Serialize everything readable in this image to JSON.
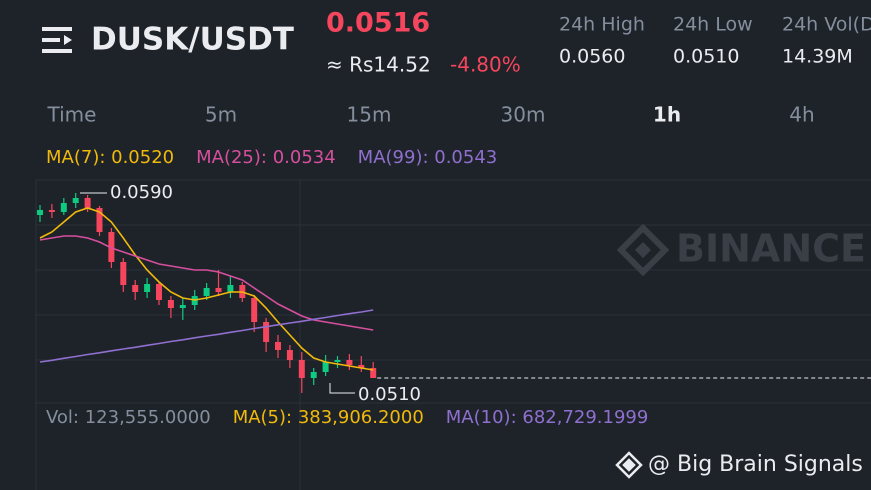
{
  "header": {
    "pair": "DUSK/USDT",
    "price": "0.0516",
    "fiat": "≈ Rs14.52",
    "change": "-4.80%",
    "stats": [
      {
        "label": "24h High",
        "value": "0.0560"
      },
      {
        "label": "24h Low",
        "value": "0.0510"
      },
      {
        "label": "24h Vol(D",
        "value": "14.39M"
      }
    ]
  },
  "tabs": {
    "items": [
      "Time",
      "5m",
      "15m",
      "30m",
      "1h",
      "4h"
    ],
    "active": 4
  },
  "indicators": [
    {
      "text": "MA(7): 0.0520",
      "color": "#f0b90b"
    },
    {
      "text": "MA(25): 0.0534",
      "color": "#d64f9e"
    },
    {
      "text": "MA(99): 0.0543",
      "color": "#8f6fcf"
    }
  ],
  "volume_legend": [
    {
      "text": "Vol: 123,555.0000",
      "color": "#848e9c"
    },
    {
      "text": "MA(5): 383,906.2000",
      "color": "#f0b90b"
    },
    {
      "text": "MA(10): 682,729.1999",
      "color": "#8f6fcf"
    }
  ],
  "watermark": "BINANCE",
  "credit": "@ Big Brain Signals",
  "chart_data": {
    "type": "candlestick",
    "ylim": [
      0.0505,
      0.0595
    ],
    "up_color": "#0ecb81",
    "down_color": "#f6465d",
    "candles": [
      {
        "o": 0.05812,
        "h": 0.05852,
        "l": 0.05784,
        "c": 0.05832
      },
      {
        "o": 0.05832,
        "h": 0.05856,
        "l": 0.058,
        "c": 0.05824
      },
      {
        "o": 0.05824,
        "h": 0.0588,
        "l": 0.05812,
        "c": 0.0586
      },
      {
        "o": 0.0586,
        "h": 0.059,
        "l": 0.0584,
        "c": 0.0588
      },
      {
        "o": 0.0588,
        "h": 0.05892,
        "l": 0.05824,
        "c": 0.0584
      },
      {
        "o": 0.0584,
        "h": 0.05848,
        "l": 0.05728,
        "c": 0.05744
      },
      {
        "o": 0.05744,
        "h": 0.0576,
        "l": 0.056,
        "c": 0.05624
      },
      {
        "o": 0.05624,
        "h": 0.0564,
        "l": 0.05504,
        "c": 0.05532
      },
      {
        "o": 0.05532,
        "h": 0.05552,
        "l": 0.05472,
        "c": 0.05504
      },
      {
        "o": 0.05504,
        "h": 0.0556,
        "l": 0.0548,
        "c": 0.05536
      },
      {
        "o": 0.05536,
        "h": 0.05544,
        "l": 0.05452,
        "c": 0.05472
      },
      {
        "o": 0.05472,
        "h": 0.05488,
        "l": 0.054,
        "c": 0.0544
      },
      {
        "o": 0.0544,
        "h": 0.0548,
        "l": 0.05392,
        "c": 0.05452
      },
      {
        "o": 0.05452,
        "h": 0.05512,
        "l": 0.05432,
        "c": 0.05488
      },
      {
        "o": 0.05488,
        "h": 0.0554,
        "l": 0.05472,
        "c": 0.0552
      },
      {
        "o": 0.0552,
        "h": 0.05592,
        "l": 0.05488,
        "c": 0.05504
      },
      {
        "o": 0.05504,
        "h": 0.05568,
        "l": 0.0548,
        "c": 0.05532
      },
      {
        "o": 0.05532,
        "h": 0.05544,
        "l": 0.05464,
        "c": 0.0548
      },
      {
        "o": 0.0548,
        "h": 0.05492,
        "l": 0.05344,
        "c": 0.05384
      },
      {
        "o": 0.05384,
        "h": 0.054,
        "l": 0.05264,
        "c": 0.05304
      },
      {
        "o": 0.05304,
        "h": 0.05332,
        "l": 0.0524,
        "c": 0.05272
      },
      {
        "o": 0.05272,
        "h": 0.05292,
        "l": 0.052,
        "c": 0.05232
      },
      {
        "o": 0.05232,
        "h": 0.05264,
        "l": 0.051,
        "c": 0.0516
      },
      {
        "o": 0.0516,
        "h": 0.052,
        "l": 0.05132,
        "c": 0.05184
      },
      {
        "o": 0.05184,
        "h": 0.05252,
        "l": 0.05168,
        "c": 0.05224
      },
      {
        "o": 0.05224,
        "h": 0.05248,
        "l": 0.052,
        "c": 0.05232
      },
      {
        "o": 0.05232,
        "h": 0.05256,
        "l": 0.05192,
        "c": 0.05212
      },
      {
        "o": 0.05212,
        "h": 0.05248,
        "l": 0.05184,
        "c": 0.052
      },
      {
        "o": 0.052,
        "h": 0.05224,
        "l": 0.0516,
        "c": 0.0516
      }
    ],
    "series": [
      {
        "name": "MA(7)",
        "color": "#f0b90b",
        "values": [
          0.0572,
          0.05744,
          0.05784,
          0.05824,
          0.0584,
          0.05824,
          0.05784,
          0.0572,
          0.05652,
          0.05592,
          0.05544,
          0.05504,
          0.0548,
          0.05472,
          0.0548,
          0.05492,
          0.05504,
          0.05504,
          0.05488,
          0.0544,
          0.05384,
          0.05332,
          0.0528,
          0.0524,
          0.05224,
          0.05216,
          0.05208,
          0.052,
          0.05192
        ]
      },
      {
        "name": "MA(25)",
        "color": "#d64f9e",
        "values": [
          0.05712,
          0.0572,
          0.05728,
          0.05728,
          0.0572,
          0.05704,
          0.0568,
          0.05664,
          0.05648,
          0.05632,
          0.05616,
          0.05608,
          0.056,
          0.05592,
          0.05592,
          0.05584,
          0.05568,
          0.05552,
          0.0552,
          0.05488,
          0.05456,
          0.05432,
          0.05408,
          0.05392,
          0.05384,
          0.05376,
          0.05368,
          0.0536,
          0.05352
        ]
      },
      {
        "name": "MA(99)",
        "color": "#8f6fcf",
        "values": [
          0.05224,
          0.05231,
          0.05239,
          0.05246,
          0.05254,
          0.05261,
          0.05269,
          0.05276,
          0.05283,
          0.05291,
          0.05298,
          0.05306,
          0.05313,
          0.05321,
          0.05328,
          0.05335,
          0.05343,
          0.0535,
          0.05358,
          0.05365,
          0.05373,
          0.0538,
          0.05387,
          0.05395,
          0.05402,
          0.0541,
          0.05417,
          0.05424,
          0.05432
        ]
      }
    ],
    "annotations": [
      {
        "value": 0.059,
        "label": "0.0590"
      },
      {
        "value": 0.051,
        "label": "0.0510"
      }
    ]
  }
}
